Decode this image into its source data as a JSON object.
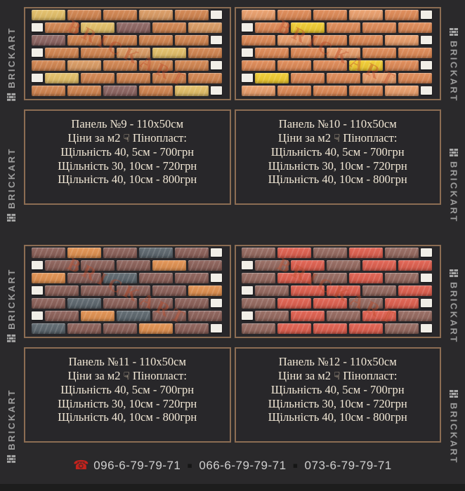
{
  "page": {
    "background": "#2a292b",
    "box_border_color": "#8c6d53",
    "box_background": "#28272a",
    "text_color": "#f2e8d6",
    "bottom_strip_color": "#1d1d1d"
  },
  "brand": {
    "name": "BRICKART",
    "side_text_color": "#9d9d9d",
    "icon": "brick-wall-icon",
    "icon_color": "#a8a8a8",
    "repeats_per_side": 4
  },
  "watermark": {
    "text": "BRICKART",
    "color": "rgba(190,75,40,0.42)"
  },
  "cards": [
    {
      "title": "Панель №9 - 110х50см",
      "price_intro": {
        "prefix": "Ціни за м2",
        "hand_glyph": "☟",
        "hand_color": "#f3dfc0",
        "suffix": "Пінопласт:"
      },
      "price_lines": [
        "Щільність 40, 5см - 700грн",
        "Щільність 30, 10см - 720грн",
        "Щільність 40, 10см - 800грн"
      ],
      "photo": {
        "foam_color": "#f1eee7",
        "palette": {
          "o": "#d4854f",
          "l": "#dd9c63",
          "y": "#e6c168",
          "m": "#8e6562"
        },
        "rows": [
          [
            "y",
            "o",
            "o",
            "l",
            "o"
          ],
          [
            "o",
            "y",
            "m",
            "o",
            "l"
          ],
          [
            "m",
            "o",
            "o",
            "o",
            "o"
          ],
          [
            "o",
            "o",
            "l",
            "y",
            "o"
          ],
          [
            "o",
            "l",
            "o",
            "o",
            "o"
          ],
          [
            "y",
            "o",
            "o",
            "o",
            "o"
          ],
          [
            "o",
            "o",
            "m",
            "o",
            "y"
          ]
        ]
      }
    },
    {
      "title": "Панель №10 - 110х50см",
      "price_intro": {
        "prefix": "Ціни за м2",
        "hand_glyph": "☟",
        "hand_color": "#f3dfc0",
        "suffix": "Пінопласт:"
      },
      "price_lines": [
        "Щільність 40, 5см - 700грн",
        "Щільність 30, 10см - 720грн",
        "Щільність 40, 10см - 800грн"
      ],
      "photo": {
        "foam_color": "#f1eee7",
        "palette": {
          "o": "#e18a55",
          "s": "#eda06c",
          "Y": "#f4ce2f"
        },
        "rows": [
          [
            "s",
            "o",
            "o",
            "s",
            "o"
          ],
          [
            "o",
            "Y",
            "o",
            "o",
            "o"
          ],
          [
            "o",
            "s",
            "o",
            "o",
            "s"
          ],
          [
            "o",
            "o",
            "s",
            "o",
            "o"
          ],
          [
            "o",
            "o",
            "o",
            "Y",
            "o"
          ],
          [
            "Y",
            "o",
            "o",
            "s",
            "o"
          ],
          [
            "s",
            "o",
            "o",
            "o",
            "s"
          ]
        ]
      }
    },
    {
      "title": "Панель №11 - 110х50см",
      "price_intro": {
        "prefix": "Ціни за м2",
        "hand_glyph": "☟",
        "hand_color": "#f3dfc0",
        "suffix": "Пінопласт:"
      },
      "price_lines": [
        "Щільність 40, 5см - 700грн",
        "Щільність 30, 10см - 720грн",
        "Щільність 40, 10см - 800грн"
      ],
      "photo": {
        "foam_color": "#f1eee7",
        "palette": {
          "m": "#8c6058",
          "g": "#5c666d",
          "o": "#e3914f"
        },
        "rows": [
          [
            "m",
            "o",
            "m",
            "g",
            "m"
          ],
          [
            "m",
            "m",
            "m",
            "o",
            "m"
          ],
          [
            "o",
            "m",
            "g",
            "m",
            "m"
          ],
          [
            "m",
            "m",
            "m",
            "m",
            "o"
          ],
          [
            "m",
            "g",
            "m",
            "m",
            "m"
          ],
          [
            "m",
            "o",
            "g",
            "m",
            "m"
          ],
          [
            "g",
            "m",
            "m",
            "o",
            "m"
          ]
        ]
      }
    },
    {
      "title": "Панель №12 - 110х50см",
      "price_intro": {
        "prefix": "Ціни за м2",
        "hand_glyph": "☟",
        "hand_color": "#f3dfc0",
        "suffix": "Пінопласт:"
      },
      "price_lines": [
        "Щільність 40, 5см - 700грн",
        "Щільність 30, 10см - 720грн",
        "Щільність 40, 10см - 800грн"
      ],
      "photo": {
        "foam_color": "#f1eee7",
        "palette": {
          "r": "#e25f4e",
          "m": "#96695f"
        },
        "rows": [
          [
            "m",
            "r",
            "m",
            "r",
            "m"
          ],
          [
            "m",
            "r",
            "m",
            "r",
            "r"
          ],
          [
            "m",
            "r",
            "m",
            "r",
            "m"
          ],
          [
            "m",
            "r",
            "r",
            "m",
            "r"
          ],
          [
            "m",
            "r",
            "r",
            "m",
            "r"
          ],
          [
            "m",
            "r",
            "m",
            "r",
            "m"
          ],
          [
            "m",
            "r",
            "r",
            "r",
            "m"
          ]
        ]
      }
    }
  ],
  "footer": {
    "phone_icon_glyph": "☎",
    "phone_icon_color": "#c4231d",
    "separator_glyph": "▪",
    "separator_color": "#151515",
    "text_color": "#cfcfcf",
    "phones": [
      "096-6-79-79-71",
      "066-6-79-79-71",
      "073-6-79-79-71"
    ]
  }
}
